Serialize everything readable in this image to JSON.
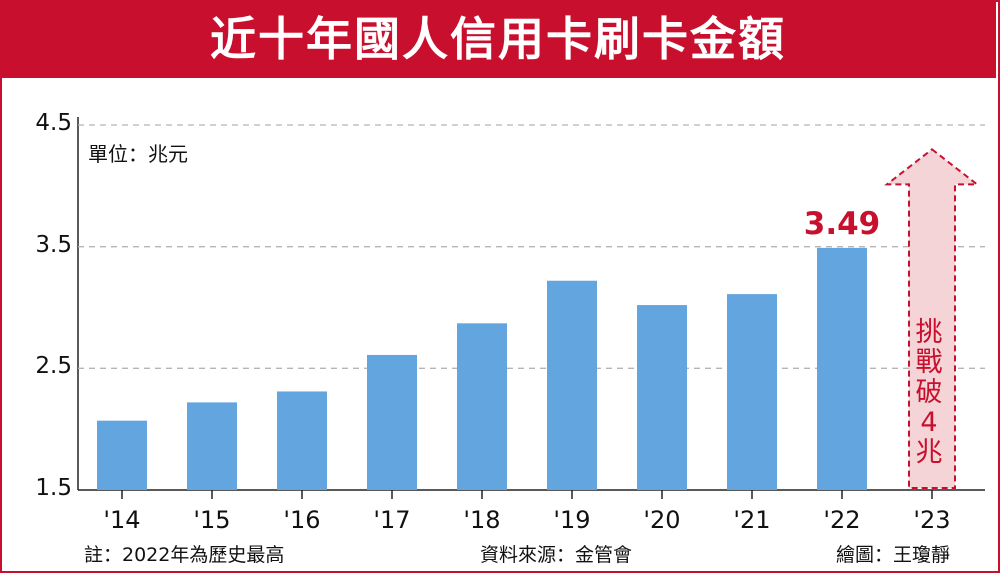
{
  "header": {
    "title": "近十年國人信用卡刷卡金額"
  },
  "unit": "單位：兆元",
  "annotation": {
    "goal_text": "挑戰破4兆"
  },
  "footer": {
    "note": "註：2022年為歷史最高",
    "source": "資料來源：金管會",
    "credit": "繪圖：王瓊靜"
  },
  "colors": {
    "bar": "#63a5df",
    "accent": "#c8102e",
    "arrow_fill": "#f4d4d6"
  },
  "chart_data": {
    "type": "bar",
    "title": "近十年國人信用卡刷卡金額",
    "ylabel": "單位：兆元",
    "categories": [
      "'14",
      "'15",
      "'16",
      "'17",
      "'18",
      "'19",
      "'20",
      "'21",
      "'22",
      "'23"
    ],
    "values": [
      2.07,
      2.22,
      2.31,
      2.61,
      2.87,
      3.22,
      3.02,
      3.11,
      3.49,
      null
    ],
    "ylim": [
      1.5,
      4.5
    ],
    "yticks": [
      "1.5",
      "2.5",
      "3.5",
      "4.5"
    ],
    "grid": true,
    "data_labels": {
      "'22": "3.49"
    },
    "annotation": {
      "category": "'23",
      "text": "挑戰破4兆",
      "target": 4.3
    }
  }
}
